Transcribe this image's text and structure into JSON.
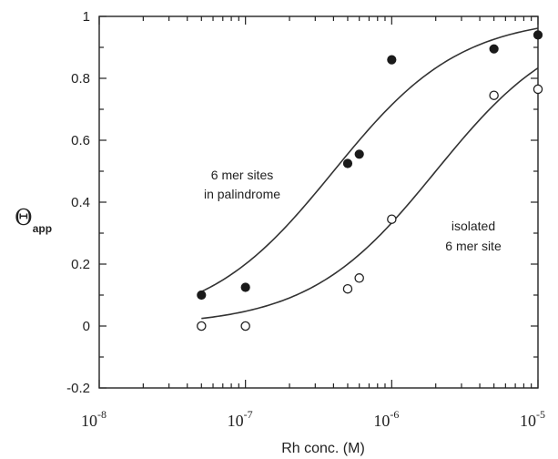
{
  "chart_data": {
    "type": "scatter",
    "xlabel": "Rh conc. (M)",
    "ylabel_main": "Θ",
    "ylabel_sub": "app",
    "xscale": "log",
    "xlim": [
      1e-08,
      1e-05
    ],
    "ylim": [
      -0.2,
      1
    ],
    "x_ticks": [
      {
        "value": 1e-08,
        "base": "10",
        "exp": "-8"
      },
      {
        "value": 1e-07,
        "base": "10",
        "exp": "-7"
      },
      {
        "value": 1e-06,
        "base": "10",
        "exp": "-6"
      },
      {
        "value": 1e-05,
        "base": "10",
        "exp": "-5"
      }
    ],
    "y_ticks": [
      {
        "value": -0.2,
        "label": "-0.2"
      },
      {
        "value": 0,
        "label": "0"
      },
      {
        "value": 0.2,
        "label": "0.2"
      },
      {
        "value": 0.4,
        "label": "0.4"
      },
      {
        "value": 0.6,
        "label": "0.6"
      },
      {
        "value": 0.8,
        "label": "0.8"
      },
      {
        "value": 1,
        "label": "1"
      }
    ],
    "series": [
      {
        "label_lines": [
          "6 mer sites",
          "in palindrome"
        ],
        "marker": "filled-circle",
        "points": [
          {
            "x": 5e-08,
            "y": 0.1
          },
          {
            "x": 1e-07,
            "y": 0.125
          },
          {
            "x": 5e-07,
            "y": 0.525
          },
          {
            "x": 6e-07,
            "y": 0.555
          },
          {
            "x": 1e-06,
            "y": 0.86
          },
          {
            "x": 5e-06,
            "y": 0.895
          },
          {
            "x": 1e-05,
            "y": 0.94
          }
        ],
        "fit": {
          "kd": 4e-07,
          "n": 1.0
        }
      },
      {
        "label_lines": [
          "isolated",
          "6 mer site"
        ],
        "marker": "open-circle",
        "points": [
          {
            "x": 5e-08,
            "y": 0.0
          },
          {
            "x": 1e-07,
            "y": 0.0
          },
          {
            "x": 5e-07,
            "y": 0.12
          },
          {
            "x": 6e-07,
            "y": 0.155
          },
          {
            "x": 1e-06,
            "y": 0.345
          },
          {
            "x": 5e-06,
            "y": 0.745
          },
          {
            "x": 1e-05,
            "y": 0.765
          }
        ],
        "fit": {
          "kd": 2e-06,
          "n": 1.0
        }
      }
    ]
  }
}
